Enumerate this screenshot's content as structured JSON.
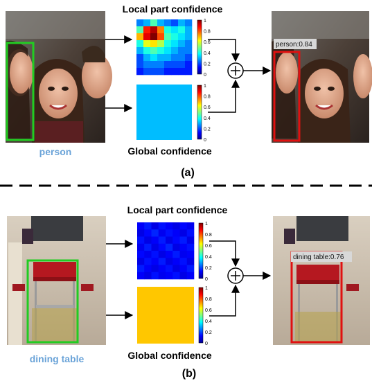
{
  "panel_a": {
    "local_title": "Local part confidence",
    "global_title": "Global confidence",
    "class_label": "person",
    "caption": "(a)",
    "detection_label": "person:0.84",
    "colorbar_ticks": [
      "1",
      "0.8",
      "0.6",
      "0.4",
      "0.2",
      "0"
    ],
    "local_heatmap": [
      [
        0.25,
        0.3,
        0.45,
        0.3,
        0.25,
        0.2,
        0.3,
        0.25
      ],
      [
        0.45,
        0.85,
        0.95,
        0.75,
        0.4,
        0.35,
        0.4,
        0.3
      ],
      [
        0.7,
        0.9,
        1.0,
        0.8,
        0.45,
        0.4,
        0.35,
        0.3
      ],
      [
        0.4,
        0.6,
        0.65,
        0.55,
        0.4,
        0.35,
        0.3,
        0.25
      ],
      [
        0.3,
        0.4,
        0.45,
        0.4,
        0.35,
        0.3,
        0.25,
        0.25
      ],
      [
        0.2,
        0.3,
        0.35,
        0.3,
        0.3,
        0.25,
        0.25,
        0.2
      ],
      [
        0.2,
        0.25,
        0.25,
        0.25,
        0.2,
        0.2,
        0.2,
        0.15
      ],
      [
        0.15,
        0.2,
        0.2,
        0.2,
        0.15,
        0.15,
        0.15,
        0.15
      ]
    ],
    "global_value": 0.31
  },
  "panel_b": {
    "local_title": "Local part confidence",
    "global_title": "Global confidence",
    "class_label": "dining table",
    "caption": "(b)",
    "detection_label": "dining table:0.76",
    "colorbar_ticks": [
      "1",
      "0.8",
      "0.6",
      "0.4",
      "0.2",
      "0"
    ],
    "local_heatmap": [
      [
        0.12,
        0.15,
        0.1,
        0.14,
        0.12,
        0.1,
        0.13,
        0.11
      ],
      [
        0.1,
        0.13,
        0.16,
        0.11,
        0.14,
        0.12,
        0.1,
        0.14
      ],
      [
        0.14,
        0.1,
        0.12,
        0.15,
        0.1,
        0.13,
        0.15,
        0.1
      ],
      [
        0.11,
        0.15,
        0.1,
        0.13,
        0.16,
        0.1,
        0.12,
        0.14
      ],
      [
        0.13,
        0.11,
        0.14,
        0.1,
        0.12,
        0.15,
        0.11,
        0.12
      ],
      [
        0.1,
        0.14,
        0.12,
        0.15,
        0.1,
        0.12,
        0.14,
        0.1
      ],
      [
        0.15,
        0.12,
        0.1,
        0.12,
        0.14,
        0.1,
        0.12,
        0.15
      ],
      [
        0.12,
        0.1,
        0.14,
        0.11,
        0.12,
        0.14,
        0.1,
        0.12
      ]
    ],
    "global_value": 0.68
  },
  "colors": {
    "gt_box": "#22cc22",
    "det_box": "#e01010",
    "class_label_text": "#6aa3d8",
    "arrow": "#000000"
  }
}
